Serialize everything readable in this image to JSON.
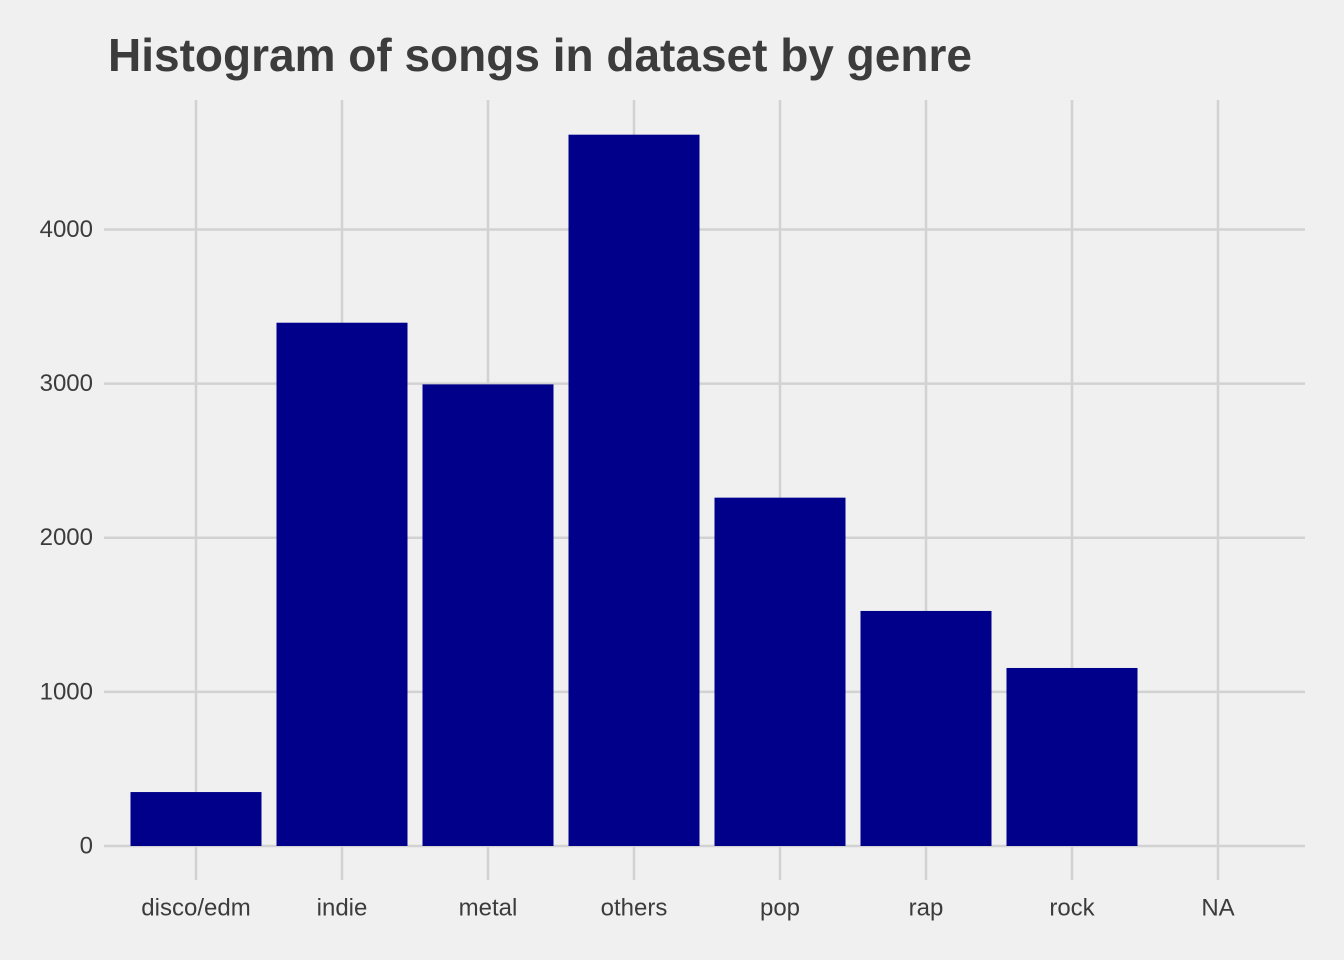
{
  "chart_data": {
    "type": "bar",
    "title": "Histogram of songs in dataset by genre",
    "xlabel": "",
    "ylabel": "",
    "categories": [
      "disco/edm",
      "indie",
      "metal",
      "others",
      "pop",
      "rap",
      "rock",
      "NA"
    ],
    "values": [
      350,
      3395,
      2995,
      4615,
      2260,
      1525,
      1155,
      0
    ],
    "yticks": [
      0,
      1000,
      2000,
      3000,
      4000
    ],
    "ytick_labels": [
      "0",
      "1000",
      "2000",
      "3000",
      "4000"
    ],
    "ylim": [
      0,
      4840
    ],
    "grid": true,
    "legend": "none",
    "colors": {
      "bar": "#00008b",
      "background": "#f0f0f0",
      "grid": "#d2d2d2",
      "text": "#3c3c3c"
    }
  }
}
